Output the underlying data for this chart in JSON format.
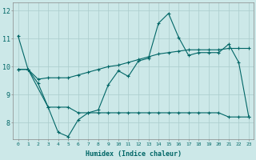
{
  "xlabel": "Humidex (Indice chaleur)",
  "bg_color": "#cce8e8",
  "grid_color": "#aacccc",
  "line_color": "#006666",
  "xlim": [
    -0.5,
    23.5
  ],
  "ylim": [
    7.4,
    12.3
  ],
  "xticks": [
    0,
    1,
    2,
    3,
    4,
    5,
    6,
    7,
    8,
    9,
    10,
    11,
    12,
    13,
    14,
    15,
    16,
    17,
    18,
    19,
    20,
    21,
    22,
    23
  ],
  "yticks": [
    8,
    9,
    10,
    11,
    12
  ],
  "line1_x": [
    0,
    1,
    2,
    3,
    4,
    5,
    6,
    7,
    8,
    9,
    10,
    11,
    12,
    13,
    14,
    15,
    16,
    17,
    18,
    19,
    20,
    21,
    22,
    23
  ],
  "line1_y": [
    11.1,
    9.9,
    9.4,
    8.55,
    7.65,
    7.5,
    8.1,
    8.35,
    8.45,
    9.35,
    9.85,
    9.65,
    10.2,
    10.3,
    11.55,
    11.9,
    11.05,
    10.4,
    10.5,
    10.5,
    10.5,
    10.8,
    10.15,
    8.2
  ],
  "line2_x": [
    0,
    1,
    3,
    4,
    5,
    6,
    7,
    8,
    9,
    10,
    11,
    12,
    13,
    14,
    15,
    16,
    17,
    18,
    19,
    20,
    21,
    22,
    23
  ],
  "line2_y": [
    9.9,
    9.9,
    8.55,
    8.55,
    8.55,
    8.35,
    8.35,
    8.35,
    8.35,
    8.35,
    8.35,
    8.35,
    8.35,
    8.35,
    8.35,
    8.35,
    8.35,
    8.35,
    8.35,
    8.35,
    8.2,
    8.2,
    8.2
  ],
  "line3_x": [
    0,
    1,
    2,
    3,
    4,
    5,
    6,
    7,
    8,
    9,
    10,
    11,
    12,
    13,
    14,
    15,
    16,
    17,
    18,
    19,
    20,
    21,
    22,
    23
  ],
  "line3_y": [
    9.9,
    9.9,
    9.55,
    9.6,
    9.6,
    9.6,
    9.7,
    9.8,
    9.9,
    10.0,
    10.05,
    10.15,
    10.25,
    10.35,
    10.45,
    10.5,
    10.55,
    10.6,
    10.6,
    10.6,
    10.6,
    10.65,
    10.65,
    10.65
  ]
}
